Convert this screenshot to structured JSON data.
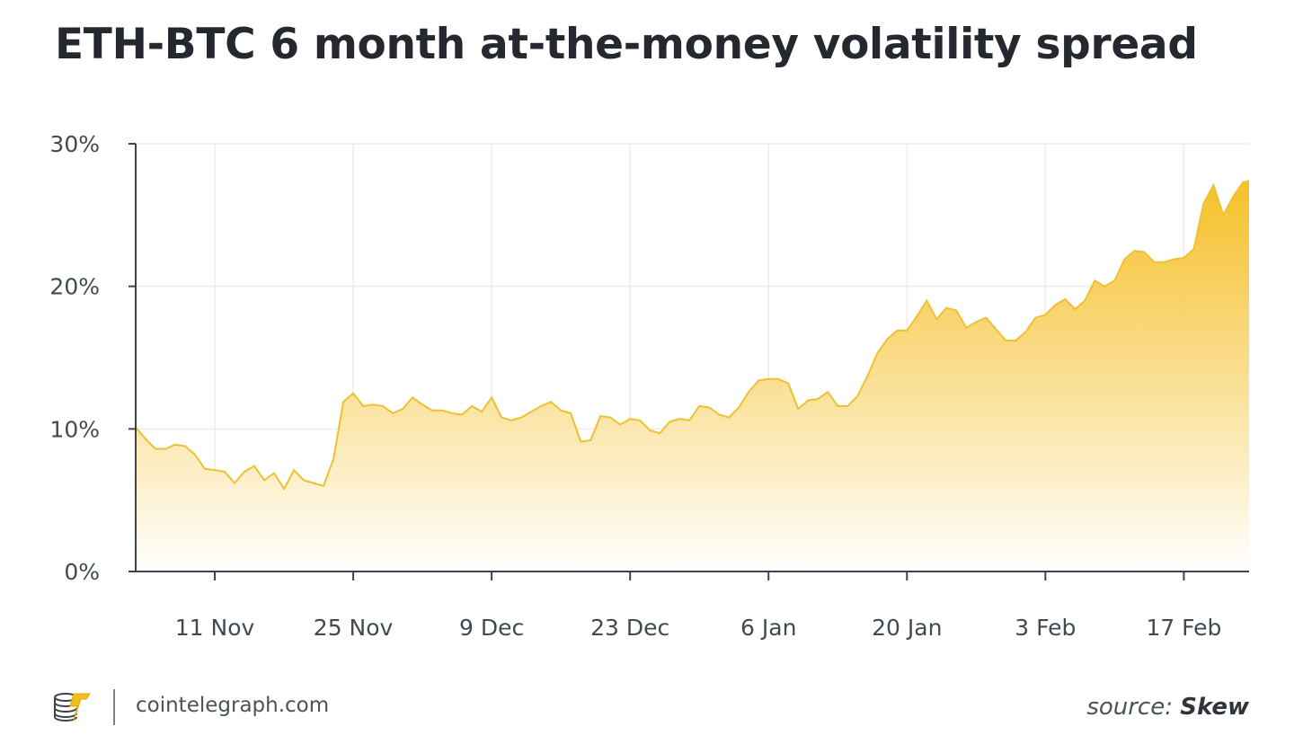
{
  "header": {
    "title": "ETH-BTC 6 month at-the-money volatility spread"
  },
  "footer": {
    "domain": "cointelegraph.com",
    "source_prefix": "source:",
    "source_name": "Skew"
  },
  "colors": {
    "line": "#f0c030",
    "fill_top": "#f5bd1f",
    "fill_bottom": "#ffffff",
    "grid": "#ececec",
    "axis": "#3b444c"
  },
  "chart_data": {
    "type": "area",
    "title": "ETH-BTC 6 month at-the-money volatility spread",
    "xlabel": "",
    "ylabel": "",
    "ylim": [
      0,
      30
    ],
    "y_ticks": [
      0,
      10,
      20,
      30
    ],
    "y_tick_labels": [
      "0%",
      "10%",
      "20%",
      "30%"
    ],
    "x_tick_labels": [
      "11 Nov",
      "25 Nov",
      "9 Dec",
      "23 Dec",
      "6 Jan",
      "20 Jan",
      "3 Feb",
      "17 Feb"
    ],
    "x_tick_days": [
      8,
      22,
      36,
      50,
      64,
      78,
      92,
      106
    ],
    "xlim": [
      0,
      112.6
    ],
    "grid": true,
    "series": [
      {
        "x": [
          0,
          1,
          2,
          3,
          4,
          5,
          6,
          7,
          8,
          9,
          10,
          11,
          12,
          13,
          14,
          15,
          16,
          17,
          18,
          19,
          20,
          21,
          22,
          23,
          24,
          25,
          26,
          27,
          28,
          29,
          30,
          31,
          32,
          33,
          34,
          35,
          36,
          37,
          38,
          39,
          40,
          41,
          42,
          43,
          44,
          45,
          46,
          47,
          48,
          49,
          50,
          51,
          52,
          53,
          54,
          55,
          56,
          57,
          58,
          59,
          60,
          61,
          62,
          63,
          64,
          65,
          66,
          67,
          68,
          69,
          70,
          71,
          72,
          73,
          74,
          75,
          76,
          77,
          78,
          79,
          80,
          81,
          82,
          83,
          84,
          85,
          86,
          87,
          88,
          89,
          90,
          91,
          92,
          93,
          94,
          95,
          96,
          97,
          98,
          99,
          100,
          101,
          102,
          103,
          104,
          105,
          106,
          107,
          108,
          109,
          110,
          111,
          112,
          112.6
        ],
        "values": [
          10.1,
          9.3,
          8.6,
          8.6,
          8.9,
          8.8,
          8.2,
          7.2,
          7.1,
          7.0,
          6.2,
          7.0,
          7.4,
          6.4,
          6.9,
          5.8,
          7.1,
          6.4,
          6.2,
          6.0,
          7.9,
          11.9,
          12.5,
          11.6,
          11.7,
          11.6,
          11.1,
          11.4,
          12.2,
          11.7,
          11.3,
          11.3,
          11.1,
          11.0,
          11.6,
          11.2,
          12.2,
          10.8,
          10.6,
          10.8,
          11.2,
          11.6,
          11.9,
          11.3,
          11.1,
          9.1,
          9.2,
          10.9,
          10.8,
          10.3,
          10.7,
          10.6,
          9.9,
          9.7,
          10.5,
          10.7,
          10.6,
          11.6,
          11.5,
          11.0,
          10.8,
          11.5,
          12.6,
          13.4,
          13.5,
          13.5,
          13.2,
          11.4,
          12.0,
          12.1,
          12.6,
          11.6,
          11.6,
          12.3,
          13.7,
          15.3,
          16.3,
          16.9,
          16.9,
          17.9,
          19.0,
          17.7,
          18.5,
          18.3,
          17.1,
          17.5,
          17.8,
          17.0,
          16.2,
          16.2,
          16.8,
          17.8,
          18.0,
          18.7,
          19.1,
          18.4,
          19.0,
          20.4,
          20.0,
          20.4,
          21.9,
          22.5,
          22.4,
          21.7,
          21.7,
          21.9,
          22.0,
          22.6,
          25.8,
          27.1,
          25.0,
          26.3,
          27.3,
          27.4
        ]
      }
    ]
  }
}
